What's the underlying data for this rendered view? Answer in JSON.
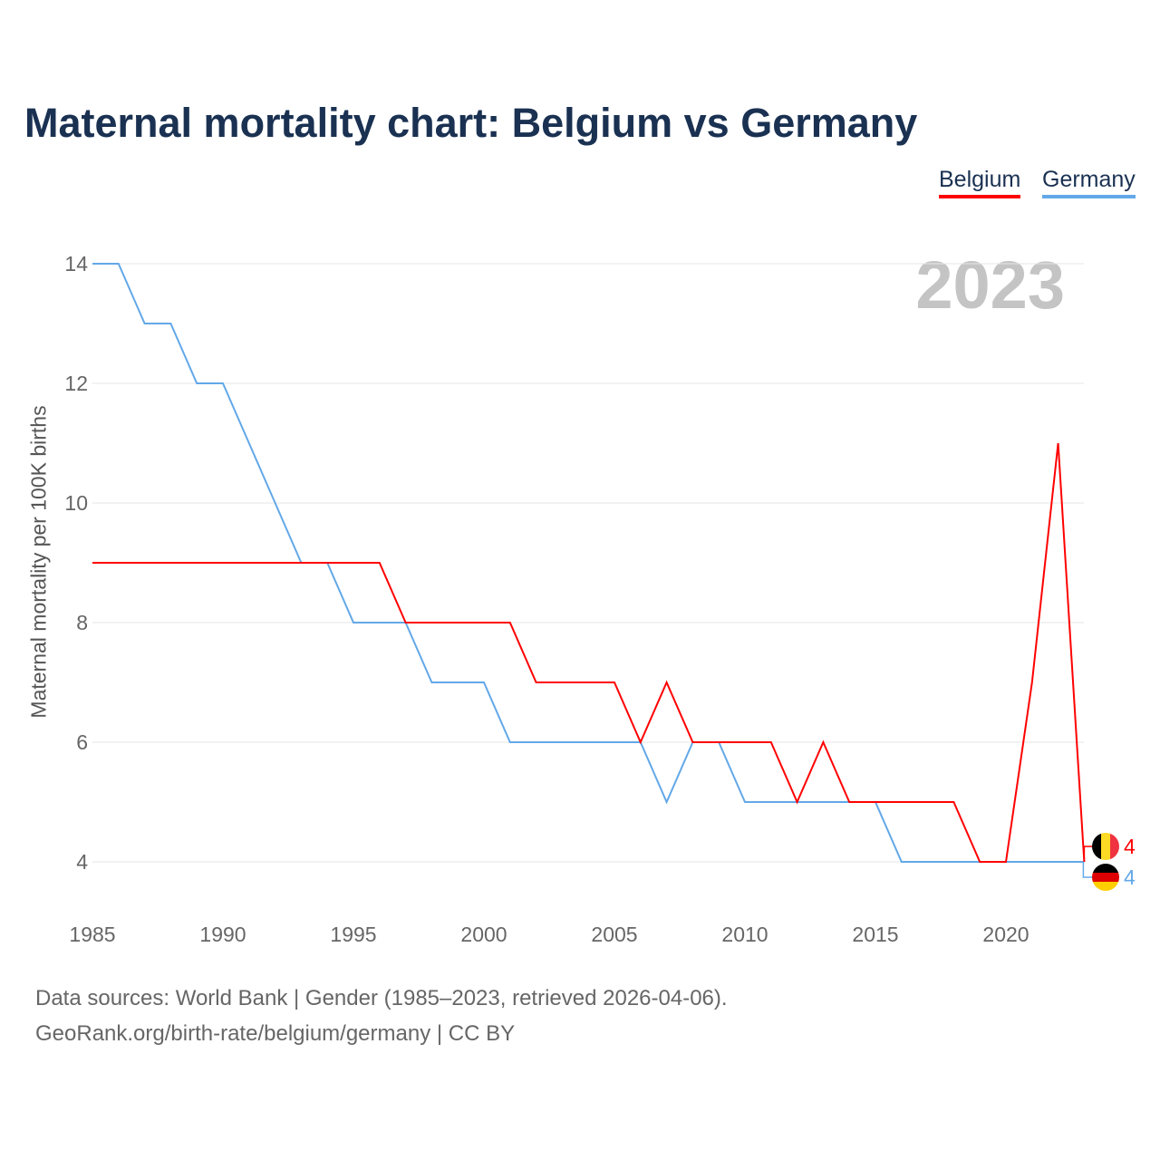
{
  "title": "Maternal mortality chart: Belgium vs Germany",
  "year_label": "2023",
  "source_line1": "Data sources: World Bank | Gender (1985–2023, retrieved 2026-04-06).",
  "source_line2": "GeoRank.org/birth-rate/belgium/germany | CC BY",
  "chart_data": {
    "type": "line",
    "title": "Maternal mortality chart: Belgium vs Germany",
    "xlabel": "",
    "ylabel": "Maternal mortality per 100K births",
    "xlim": [
      1985,
      2023
    ],
    "ylim": [
      3.5,
      14.5
    ],
    "x_ticks": [
      1985,
      1990,
      1995,
      2000,
      2005,
      2010,
      2015,
      2020
    ],
    "y_ticks": [
      4,
      6,
      8,
      10,
      12,
      14
    ],
    "grid": true,
    "legend_position": "top-right",
    "x": [
      1985,
      1986,
      1987,
      1988,
      1989,
      1990,
      1991,
      1992,
      1993,
      1994,
      1995,
      1996,
      1997,
      1998,
      1999,
      2000,
      2001,
      2002,
      2003,
      2004,
      2005,
      2006,
      2007,
      2008,
      2009,
      2010,
      2011,
      2012,
      2013,
      2014,
      2015,
      2016,
      2017,
      2018,
      2019,
      2020,
      2021,
      2022,
      2023
    ],
    "series": [
      {
        "name": "Belgium",
        "color": "#ff0000",
        "end_label": "4",
        "values": [
          9,
          9,
          9,
          9,
          9,
          9,
          9,
          9,
          9,
          9,
          9,
          9,
          8,
          8,
          8,
          8,
          8,
          7,
          7,
          7,
          7,
          6,
          7,
          6,
          6,
          6,
          6,
          5,
          6,
          5,
          5,
          5,
          5,
          5,
          4,
          4,
          7,
          11,
          4
        ]
      },
      {
        "name": "Germany",
        "color": "#62a8e8",
        "end_label": "4",
        "values": [
          14,
          14,
          13,
          13,
          12,
          12,
          11,
          10,
          9,
          9,
          8,
          8,
          8,
          7,
          7,
          7,
          6,
          6,
          6,
          6,
          6,
          6,
          5,
          6,
          6,
          5,
          5,
          5,
          5,
          5,
          5,
          4,
          4,
          4,
          4,
          4,
          4,
          4,
          4
        ]
      }
    ]
  }
}
